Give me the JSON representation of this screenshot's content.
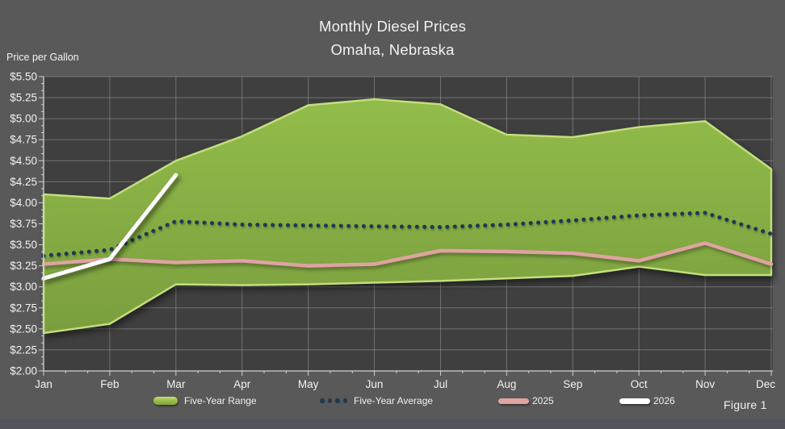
{
  "title": {
    "line1": "Monthly Diesel Prices",
    "line2": "Omaha, Nebraska"
  },
  "axis_title": "Price per Gallon",
  "figure_caption": "Figure 1",
  "legend": [
    {
      "label": "Five-Year Range",
      "type": "band",
      "color": "#9cc24a"
    },
    {
      "label": "Five-Year Average",
      "type": "dotted",
      "color": "#1d3a52"
    },
    {
      "label": "2025",
      "type": "line",
      "color": "#dfa3a2"
    },
    {
      "label": "2026",
      "type": "line",
      "color": "#ffffff"
    }
  ],
  "colors": {
    "background": "#595959",
    "plot_background": "#3f3f3f",
    "gridline": "#9b9b9b",
    "axis_line": "#d4d4d4",
    "tick": "#cfcfcf",
    "text": "#f2f2f2",
    "band_fill_top": "#92bc4a",
    "band_fill_bottom": "#7a9e3e",
    "band_edge": "#c3de7d",
    "average_line": "#1d3a52",
    "line_2025": "#dfa3a2",
    "line_2026": "#ffffff",
    "footer_strip": "#53535b"
  },
  "chart_data": {
    "type": "area",
    "title": "Monthly Diesel Prices",
    "subtitle": "Omaha, Nebraska",
    "xlabel": "",
    "ylabel": "Price per Gallon",
    "x": [
      "Jan",
      "Feb",
      "Mar",
      "Apr",
      "May",
      "Jun",
      "Jul",
      "Aug",
      "Sep",
      "Oct",
      "Nov",
      "Dec"
    ],
    "y_ticks": [
      "$5.50",
      "$5.25",
      "$5.00",
      "$4.75",
      "$4.50",
      "$4.25",
      "$4.00",
      "$3.75",
      "$3.50",
      "$3.25",
      "$3.00",
      "$2.75",
      "$2.50",
      "$2.25",
      "$2.00"
    ],
    "ylim": [
      2.0,
      5.5
    ],
    "grid": true,
    "legend_position": "bottom",
    "series": [
      {
        "name": "Five-Year Range (high)",
        "style": "band-upper",
        "values": [
          4.1,
          4.05,
          4.5,
          4.79,
          5.16,
          5.23,
          5.17,
          4.81,
          4.78,
          4.9,
          4.97,
          4.4
        ]
      },
      {
        "name": "Five-Year Range (low)",
        "style": "band-lower",
        "values": [
          2.45,
          2.56,
          3.03,
          3.02,
          3.03,
          3.05,
          3.07,
          3.1,
          3.13,
          3.24,
          3.14,
          3.14
        ]
      },
      {
        "name": "Five-Year Average",
        "style": "dotted",
        "values": [
          3.37,
          3.44,
          3.78,
          3.74,
          3.73,
          3.72,
          3.71,
          3.74,
          3.79,
          3.85,
          3.88,
          3.63
        ]
      },
      {
        "name": "2025",
        "style": "solid",
        "values": [
          3.27,
          3.33,
          3.29,
          3.31,
          3.25,
          3.27,
          3.43,
          3.42,
          3.4,
          3.31,
          3.52,
          3.27
        ]
      },
      {
        "name": "2026",
        "style": "solid",
        "values": [
          3.1,
          3.33,
          4.33
        ]
      }
    ]
  }
}
